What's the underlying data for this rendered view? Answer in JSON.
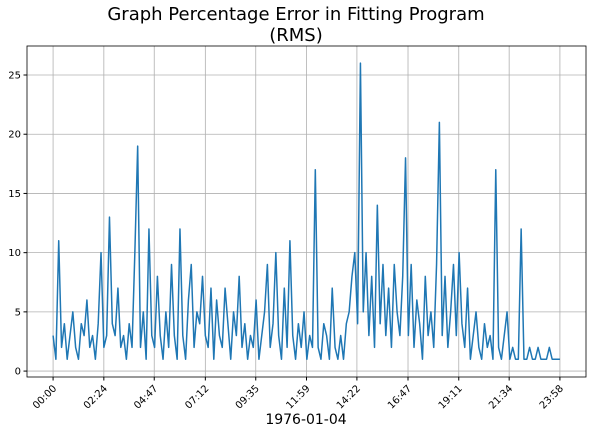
{
  "chart_data": {
    "type": "line",
    "title": "Graph Percentage Error in Fitting Program\n(RMS)",
    "x_label": "1976-01-04",
    "x": [
      0,
      8,
      16,
      24,
      32,
      40,
      48,
      56,
      64,
      72,
      80,
      88,
      96,
      104,
      112,
      120,
      128,
      136,
      144,
      152,
      160,
      168,
      176,
      184,
      192,
      200,
      208,
      216,
      224,
      232,
      240,
      248,
      256,
      264,
      272,
      280,
      288,
      296,
      304,
      312,
      320,
      328,
      336,
      344,
      352,
      360,
      368,
      376,
      384,
      392,
      400,
      408,
      416,
      424,
      432,
      440,
      448,
      456,
      464,
      472,
      480,
      488,
      496,
      504,
      512,
      520,
      528,
      536,
      544,
      552,
      560,
      568,
      576,
      584,
      592,
      600,
      608,
      616,
      624,
      632,
      640,
      648,
      656,
      664,
      672,
      680,
      688,
      696,
      704,
      712,
      720,
      728,
      736,
      744,
      752,
      760,
      768,
      776,
      784,
      792,
      800,
      808,
      816,
      824,
      832,
      840,
      848,
      856,
      864,
      872,
      880,
      888,
      896,
      904,
      912,
      920,
      928,
      936,
      944,
      952,
      960,
      968,
      976,
      984,
      992,
      1000,
      1008,
      1016,
      1024,
      1032,
      1040,
      1048,
      1056,
      1064,
      1072,
      1080,
      1088,
      1096,
      1104,
      1112,
      1120,
      1128,
      1136,
      1144,
      1152,
      1160,
      1168,
      1176,
      1184,
      1192,
      1200,
      1208,
      1216,
      1224,
      1232,
      1240,
      1248,
      1256,
      1264,
      1272,
      1280,
      1288,
      1296,
      1304,
      1312,
      1320,
      1328,
      1336,
      1344,
      1352,
      1360,
      1368,
      1376,
      1384,
      1392,
      1400,
      1408,
      1416,
      1424,
      1432,
      1438
    ],
    "series": [
      {
        "name": "RMS",
        "color": "#1f77b4",
        "values": [
          3,
          1,
          11,
          2,
          4,
          1,
          3,
          5,
          2,
          1,
          4,
          3,
          6,
          2,
          3,
          1,
          4,
          10,
          2,
          3,
          13,
          4,
          3,
          7,
          2,
          3,
          1,
          4,
          2,
          10,
          19,
          2,
          5,
          1,
          12,
          3,
          2,
          8,
          3,
          1,
          5,
          2,
          9,
          3,
          1,
          12,
          3,
          1,
          6,
          9,
          2,
          5,
          4,
          8,
          3,
          2,
          7,
          1,
          6,
          3,
          2,
          7,
          4,
          1,
          5,
          3,
          8,
          2,
          4,
          1,
          3,
          2,
          6,
          1,
          3,
          5,
          9,
          2,
          4,
          10,
          3,
          1,
          7,
          2,
          11,
          3,
          1,
          4,
          2,
          5,
          1,
          3,
          2,
          17,
          2,
          1,
          4,
          3,
          1,
          7,
          2,
          1,
          3,
          1,
          4,
          5,
          8,
          10,
          4,
          26,
          5,
          10,
          3,
          8,
          2,
          14,
          4,
          9,
          3,
          7,
          2,
          9,
          5,
          3,
          8,
          18,
          3,
          9,
          2,
          6,
          4,
          1,
          8,
          3,
          5,
          2,
          9,
          21,
          3,
          8,
          2,
          5,
          9,
          3,
          10,
          4,
          2,
          7,
          1,
          3,
          5,
          2,
          1,
          4,
          2,
          3,
          1,
          17,
          2,
          1,
          3,
          5,
          1,
          2,
          1,
          1,
          12,
          1,
          1,
          2,
          1,
          1,
          2,
          1,
          1,
          1,
          2,
          1,
          1,
          1,
          1
        ]
      }
    ],
    "xlim": [
      -74,
      1512
    ],
    "xticks": [
      {
        "value": 0,
        "label": "00:00"
      },
      {
        "value": 144,
        "label": "02:24"
      },
      {
        "value": 287,
        "label": "04:47"
      },
      {
        "value": 432,
        "label": "07:12"
      },
      {
        "value": 575,
        "label": "09:35"
      },
      {
        "value": 719,
        "label": "11:59"
      },
      {
        "value": 862,
        "label": "14:22"
      },
      {
        "value": 1007,
        "label": "16:47"
      },
      {
        "value": 1151,
        "label": "19:11"
      },
      {
        "value": 1294,
        "label": "21:34"
      },
      {
        "value": 1438,
        "label": "23:58"
      }
    ],
    "ylim": [
      -0.5,
      27.45
    ],
    "yticks": [
      0,
      5,
      10,
      15,
      20,
      25
    ],
    "grid": true
  }
}
